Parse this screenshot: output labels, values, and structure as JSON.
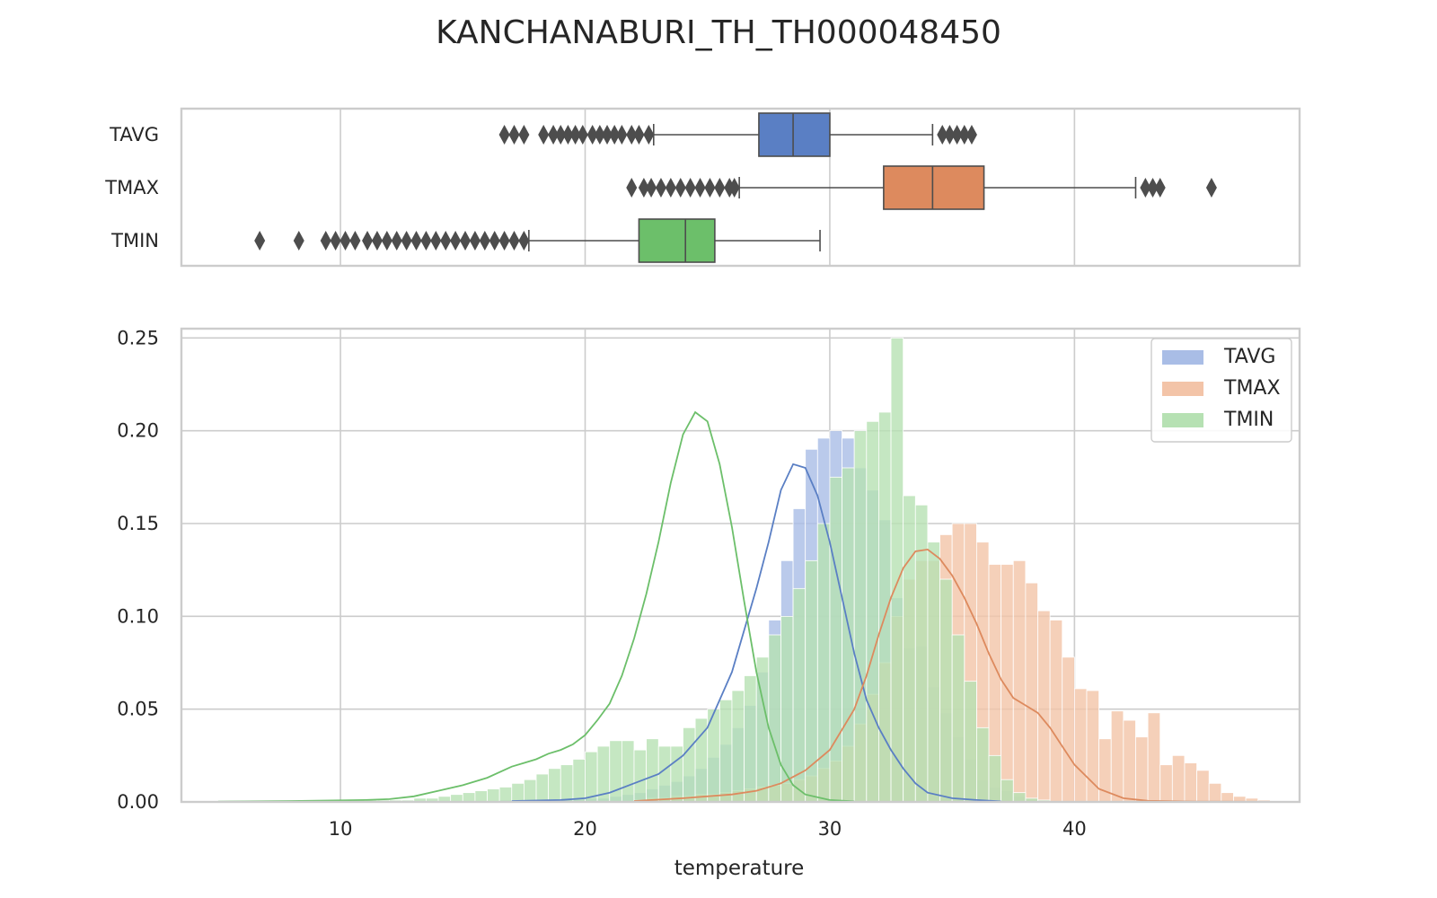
{
  "chart_data": [
    {
      "type": "box",
      "title": "KANCHANABURI_TH_TH000048450",
      "categories": [
        "TAVG",
        "TMAX",
        "TMIN"
      ],
      "xlim": [
        3.5,
        49.2
      ],
      "grid": true,
      "boxes": [
        {
          "name": "TAVG",
          "color": "#5a7fc4",
          "whisker_low": 22.8,
          "q1": 27.1,
          "median": 28.5,
          "q3": 30.0,
          "whisker_high": 34.2,
          "outliers": [
            16.7,
            17.1,
            17.5,
            18.3,
            18.7,
            19.0,
            19.3,
            19.6,
            19.9,
            20.3,
            20.6,
            20.9,
            21.2,
            21.5,
            21.9,
            22.2,
            22.6,
            34.6,
            34.9,
            35.2,
            35.5,
            35.8
          ]
        },
        {
          "name": "TMAX",
          "color": "#dd8a5e",
          "whisker_low": 26.3,
          "q1": 32.2,
          "median": 34.2,
          "q3": 36.3,
          "whisker_high": 42.5,
          "outliers": [
            21.9,
            22.4,
            22.7,
            23.1,
            23.5,
            23.9,
            24.3,
            24.7,
            25.1,
            25.5,
            25.9,
            26.1,
            42.9,
            43.2,
            43.5,
            45.6
          ]
        },
        {
          "name": "TMIN",
          "color": "#6cbf6a",
          "whisker_low": 17.7,
          "q1": 22.2,
          "median": 24.1,
          "q3": 25.3,
          "whisker_high": 29.6,
          "outliers": [
            6.7,
            8.3,
            9.4,
            9.8,
            10.2,
            10.6,
            11.1,
            11.5,
            11.9,
            12.3,
            12.7,
            13.1,
            13.5,
            13.9,
            14.3,
            14.7,
            15.1,
            15.5,
            15.9,
            16.3,
            16.7,
            17.1,
            17.5
          ]
        }
      ]
    },
    {
      "type": "histogram",
      "xlabel": "temperature",
      "xlim": [
        3.5,
        49.2
      ],
      "ylim": [
        0,
        0.255
      ],
      "xticks": [
        10,
        20,
        30,
        40
      ],
      "yticks": [
        "0.00",
        "0.05",
        "0.10",
        "0.15",
        "0.20",
        "0.25"
      ],
      "grid": true,
      "legend": "top-right",
      "bin_width": 0.5,
      "series": [
        {
          "name": "TAVG",
          "color": "#5a7fc4",
          "fill": "#a9bde6",
          "bin_start": 16.5,
          "values": [
            0.001,
            0.001,
            0.001,
            0.001,
            0.001,
            0.002,
            0.002,
            0.002,
            0.002,
            0.003,
            0.004,
            0.005,
            0.007,
            0.009,
            0.011,
            0.014,
            0.018,
            0.024,
            0.031,
            0.04,
            0.052,
            0.07,
            0.098,
            0.13,
            0.158,
            0.19,
            0.196,
            0.2,
            0.196,
            0.18,
            0.168,
            0.152,
            0.11,
            0.083,
            0.084,
            0.062,
            0.048,
            0.035,
            0.023,
            0.012,
            0.008,
            0.006,
            0.003,
            0.002,
            0.001
          ],
          "kde": [
            [
              17,
              0.0005
            ],
            [
              19,
              0.001
            ],
            [
              20,
              0.002
            ],
            [
              21,
              0.005
            ],
            [
              22,
              0.01
            ],
            [
              23,
              0.015
            ],
            [
              24,
              0.025
            ],
            [
              25,
              0.04
            ],
            [
              26,
              0.07
            ],
            [
              27,
              0.115
            ],
            [
              27.5,
              0.14
            ],
            [
              28,
              0.168
            ],
            [
              28.5,
              0.182
            ],
            [
              29,
              0.18
            ],
            [
              29.5,
              0.165
            ],
            [
              30,
              0.14
            ],
            [
              30.5,
              0.11
            ],
            [
              31,
              0.08
            ],
            [
              31.5,
              0.055
            ],
            [
              32,
              0.04
            ],
            [
              32.5,
              0.028
            ],
            [
              33,
              0.018
            ],
            [
              33.5,
              0.01
            ],
            [
              34,
              0.005
            ],
            [
              35,
              0.002
            ],
            [
              36,
              0.001
            ],
            [
              37,
              0.0003
            ]
          ]
        },
        {
          "name": "TMAX",
          "color": "#dd8a5e",
          "fill": "#f3c4a8",
          "bin_start": 22.0,
          "values": [
            0.001,
            0.002,
            0.002,
            0.003,
            0.003,
            0.004,
            0.004,
            0.005,
            0.006,
            0.007,
            0.008,
            0.009,
            0.01,
            0.012,
            0.014,
            0.018,
            0.022,
            0.03,
            0.042,
            0.058,
            0.075,
            0.1,
            0.12,
            0.13,
            0.13,
            0.144,
            0.15,
            0.15,
            0.14,
            0.128,
            0.128,
            0.13,
            0.118,
            0.103,
            0.098,
            0.078,
            0.061,
            0.06,
            0.034,
            0.049,
            0.044,
            0.035,
            0.048,
            0.02,
            0.025,
            0.021,
            0.017,
            0.01,
            0.005,
            0.003,
            0.002,
            0.001
          ],
          "kde": [
            [
              22,
              0.0005
            ],
            [
              24,
              0.002
            ],
            [
              26,
              0.004
            ],
            [
              27,
              0.006
            ],
            [
              28,
              0.01
            ],
            [
              29,
              0.017
            ],
            [
              30,
              0.028
            ],
            [
              31,
              0.05
            ],
            [
              31.5,
              0.068
            ],
            [
              32,
              0.09
            ],
            [
              32.5,
              0.11
            ],
            [
              33,
              0.126
            ],
            [
              33.5,
              0.135
            ],
            [
              34,
              0.136
            ],
            [
              34.5,
              0.131
            ],
            [
              35,
              0.122
            ],
            [
              35.5,
              0.11
            ],
            [
              36,
              0.096
            ],
            [
              36.5,
              0.08
            ],
            [
              37,
              0.066
            ],
            [
              37.5,
              0.056
            ],
            [
              38,
              0.052
            ],
            [
              38.5,
              0.048
            ],
            [
              39,
              0.04
            ],
            [
              39.5,
              0.03
            ],
            [
              40,
              0.02
            ],
            [
              41,
              0.007
            ],
            [
              42,
              0.002
            ],
            [
              43,
              0.0006
            ],
            [
              45,
              0.0002
            ],
            [
              47,
              0.0001
            ]
          ]
        },
        {
          "name": "TMIN",
          "color": "#6cbf6a",
          "fill": "#b6e1b3",
          "bin_start": 9.0,
          "values": [
            0.001,
            0.001,
            0.001,
            0.001,
            0.001,
            0.001,
            0.001,
            0.001,
            0.002,
            0.002,
            0.003,
            0.004,
            0.005,
            0.006,
            0.007,
            0.008,
            0.01,
            0.012,
            0.015,
            0.018,
            0.02,
            0.023,
            0.027,
            0.03,
            0.033,
            0.033,
            0.028,
            0.034,
            0.03,
            0.03,
            0.04,
            0.045,
            0.05,
            0.055,
            0.06,
            0.068,
            0.078,
            0.09,
            0.1,
            0.115,
            0.13,
            0.15,
            0.175,
            0.18,
            0.2,
            0.205,
            0.21,
            0.25,
            0.165,
            0.16,
            0.14,
            0.12,
            0.09,
            0.065,
            0.04,
            0.025,
            0.012,
            0.005,
            0.002,
            0.001
          ],
          "kde": [
            [
              5,
              0.0002
            ],
            [
              8,
              0.0005
            ],
            [
              10,
              0.0008
            ],
            [
              11,
              0.001
            ],
            [
              12,
              0.0015
            ],
            [
              13,
              0.003
            ],
            [
              14,
              0.006
            ],
            [
              15,
              0.009
            ],
            [
              16,
              0.013
            ],
            [
              17,
              0.019
            ],
            [
              17.5,
              0.021
            ],
            [
              18,
              0.023
            ],
            [
              18.5,
              0.026
            ],
            [
              19,
              0.028
            ],
            [
              19.5,
              0.031
            ],
            [
              20,
              0.036
            ],
            [
              20.5,
              0.044
            ],
            [
              21,
              0.053
            ],
            [
              21.5,
              0.068
            ],
            [
              22,
              0.088
            ],
            [
              22.5,
              0.112
            ],
            [
              23,
              0.14
            ],
            [
              23.5,
              0.172
            ],
            [
              24,
              0.198
            ],
            [
              24.5,
              0.21
            ],
            [
              25,
              0.205
            ],
            [
              25.5,
              0.182
            ],
            [
              26,
              0.148
            ],
            [
              26.5,
              0.108
            ],
            [
              27,
              0.07
            ],
            [
              27.5,
              0.04
            ],
            [
              28,
              0.02
            ],
            [
              28.5,
              0.009
            ],
            [
              29,
              0.004
            ],
            [
              30,
              0.001
            ],
            [
              31,
              0.0003
            ]
          ]
        }
      ]
    }
  ]
}
